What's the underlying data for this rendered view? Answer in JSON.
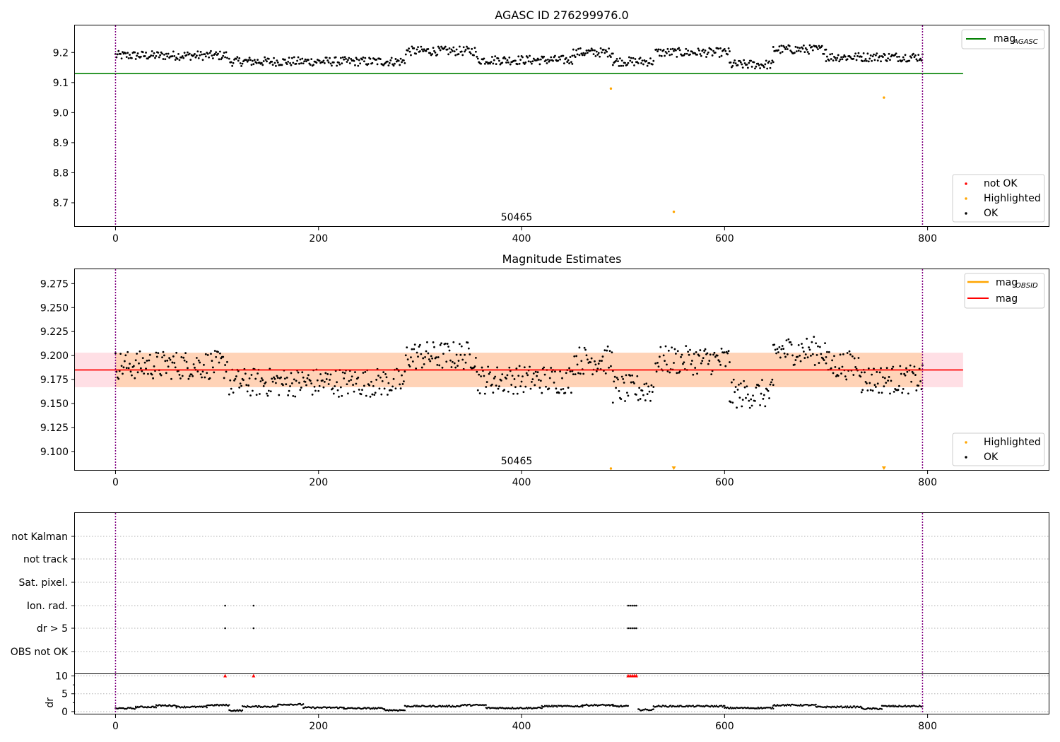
{
  "chart_data": [
    {
      "type": "scatter",
      "title": "AGASC ID 276299976.0",
      "obsid_label": "50465",
      "xlim": [
        -40,
        920
      ],
      "ylim": [
        8.62,
        9.29
      ],
      "xticks": [
        0,
        200,
        400,
        600,
        800
      ],
      "yticks": [
        8.7,
        8.8,
        8.9,
        9.0,
        9.1,
        9.2
      ],
      "ytick_labels": [
        "8.7",
        "8.8",
        "8.9",
        "9.0",
        "9.1",
        "9.2"
      ],
      "vlines": [
        0,
        795
      ],
      "mag_agasc": 9.13,
      "mag_agasc_xrange": [
        -40,
        835
      ],
      "highlighted_points": [
        [
          488,
          9.08
        ],
        [
          550,
          8.67
        ],
        [
          757,
          9.05
        ]
      ],
      "ok_segments": [
        {
          "x": [
            0,
            110
          ],
          "mean": 9.19
        },
        {
          "x": [
            112,
            285
          ],
          "mean": 9.17
        },
        {
          "x": [
            286,
            355
          ],
          "mean": 9.205
        },
        {
          "x": [
            356,
            450
          ],
          "mean": 9.175
        },
        {
          "x": [
            450,
            490
          ],
          "mean": 9.2
        },
        {
          "x": [
            490,
            530
          ],
          "mean": 9.17
        },
        {
          "x": [
            532,
            605
          ],
          "mean": 9.2
        },
        {
          "x": [
            605,
            648
          ],
          "mean": 9.16
        },
        {
          "x": [
            648,
            700
          ],
          "mean": 9.21
        },
        {
          "x": [
            700,
            735
          ],
          "mean": 9.185
        },
        {
          "x": [
            735,
            795
          ],
          "mean": 9.185
        }
      ],
      "legend_top": [
        {
          "label": "mag",
          "sub": "AGASC",
          "color": "#008000"
        }
      ],
      "legend_bottom": [
        {
          "label": "not OK",
          "color": "#ff0000"
        },
        {
          "label": "Highlighted",
          "color": "#ffa500"
        },
        {
          "label": "OK",
          "color": "#000000"
        }
      ]
    },
    {
      "type": "scatter",
      "title": "Magnitude Estimates",
      "obsid_label": "50465",
      "xlim": [
        -40,
        920
      ],
      "ylim": [
        9.08,
        9.29
      ],
      "xticks": [
        0,
        200,
        400,
        600,
        800
      ],
      "yticks": [
        9.1,
        9.125,
        9.15,
        9.175,
        9.2,
        9.225,
        9.25,
        9.275
      ],
      "ytick_labels": [
        "9.100",
        "9.125",
        "9.150",
        "9.175",
        "9.200",
        "9.225",
        "9.250",
        "9.275"
      ],
      "vlines": [
        0,
        795
      ],
      "mag_obsid": 9.185,
      "mag": 9.185,
      "band": [
        9.167,
        9.203
      ],
      "band_xrange": [
        -40,
        835
      ],
      "ok_segments": [
        {
          "x": [
            0,
            110
          ],
          "mean": 9.19
        },
        {
          "x": [
            112,
            285
          ],
          "mean": 9.172
        },
        {
          "x": [
            286,
            355
          ],
          "mean": 9.2
        },
        {
          "x": [
            356,
            450
          ],
          "mean": 9.175
        },
        {
          "x": [
            450,
            490
          ],
          "mean": 9.195
        },
        {
          "x": [
            490,
            530
          ],
          "mean": 9.165
        },
        {
          "x": [
            532,
            605
          ],
          "mean": 9.195
        },
        {
          "x": [
            605,
            648
          ],
          "mean": 9.16
        },
        {
          "x": [
            648,
            700
          ],
          "mean": 9.205
        },
        {
          "x": [
            700,
            735
          ],
          "mean": 9.19
        },
        {
          "x": [
            735,
            795
          ],
          "mean": 9.175
        }
      ],
      "highlighted_points": [
        [
          488,
          9.08
        ],
        [
          550,
          9.08
        ],
        [
          757,
          9.08
        ]
      ],
      "legend_top": [
        {
          "label": "mag",
          "sub": "OBSID",
          "color": "#ffa500"
        },
        {
          "label": "mag",
          "sub": "",
          "color": "#ff0000"
        }
      ],
      "legend_bottom": [
        {
          "label": "Highlighted",
          "color": "#ffa500"
        },
        {
          "label": "OK",
          "color": "#000000"
        }
      ]
    },
    {
      "type": "scatter",
      "xlim": [
        -40,
        920
      ],
      "xticks": [
        0,
        200,
        400,
        600,
        800
      ],
      "vlines": [
        0,
        795
      ],
      "flag_rows": [
        "not Kalman",
        "not track",
        "Sat. pixel.",
        "Ion. rad.",
        "dr > 5",
        "OBS not OK"
      ],
      "flag_points": {
        "Ion. rad.": [
          108,
          136,
          505,
          507,
          509,
          511,
          513
        ],
        "dr > 5": [
          108,
          136,
          505,
          507,
          509,
          511,
          513
        ]
      },
      "dr": {
        "ylabel": "dr",
        "ylim": [
          -0.8,
          10.5
        ],
        "yticks": [
          0,
          5,
          10
        ],
        "clip_points": [
          108,
          136,
          505,
          507,
          509,
          511,
          513
        ],
        "dr_segments": [
          {
            "x": [
              0,
              20
            ],
            "mean": 0.9
          },
          {
            "x": [
              20,
              40
            ],
            "mean": 1.3
          },
          {
            "x": [
              40,
              60
            ],
            "mean": 1.7
          },
          {
            "x": [
              60,
              90
            ],
            "mean": 1.3
          },
          {
            "x": [
              90,
              112
            ],
            "mean": 1.8
          },
          {
            "x": [
              112,
              125
            ],
            "mean": 0.3
          },
          {
            "x": [
              125,
              160
            ],
            "mean": 1.4
          },
          {
            "x": [
              160,
              185
            ],
            "mean": 2.0
          },
          {
            "x": [
              185,
              225
            ],
            "mean": 1.1
          },
          {
            "x": [
              225,
              265
            ],
            "mean": 0.9
          },
          {
            "x": [
              265,
              285
            ],
            "mean": 0.4
          },
          {
            "x": [
              285,
              340
            ],
            "mean": 1.5
          },
          {
            "x": [
              340,
              365
            ],
            "mean": 1.8
          },
          {
            "x": [
              365,
              420
            ],
            "mean": 1.0
          },
          {
            "x": [
              420,
              460
            ],
            "mean": 1.5
          },
          {
            "x": [
              460,
              490
            ],
            "mean": 1.8
          },
          {
            "x": [
              490,
              505
            ],
            "mean": 1.5
          },
          {
            "x": [
              515,
              530
            ],
            "mean": 0.5
          },
          {
            "x": [
              530,
              600
            ],
            "mean": 1.5
          },
          {
            "x": [
              600,
              648
            ],
            "mean": 1.0
          },
          {
            "x": [
              648,
              690
            ],
            "mean": 1.8
          },
          {
            "x": [
              690,
              735
            ],
            "mean": 1.3
          },
          {
            "x": [
              735,
              755
            ],
            "mean": 0.8
          },
          {
            "x": [
              755,
              795
            ],
            "mean": 1.5
          }
        ]
      }
    }
  ]
}
